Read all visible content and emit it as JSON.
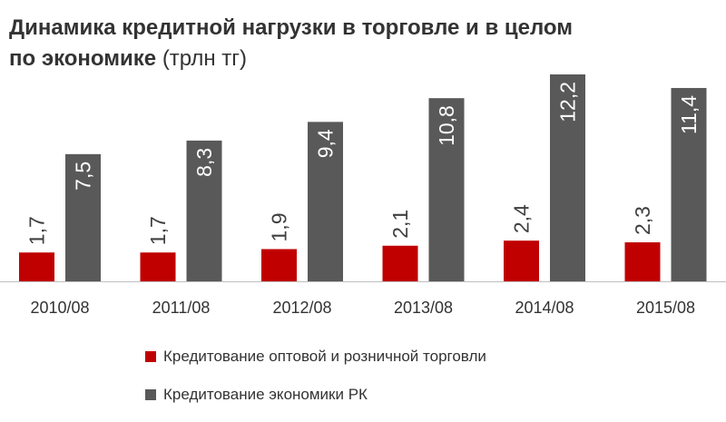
{
  "chart_data": {
    "type": "bar",
    "title": "Динамика  кредитной нагрузки в торговле и в целом по экономике",
    "subtitle": "(трлн тг)",
    "categories": [
      "2010/08",
      "2011/08",
      "2012/08",
      "2013/08",
      "2014/08",
      "2015/08"
    ],
    "series": [
      {
        "name": "Кредитование оптовой и розничной торговли",
        "color": "#c00000",
        "values": [
          1.7,
          1.7,
          1.9,
          2.1,
          2.4,
          2.3
        ],
        "labels": [
          "1,7",
          "1,7",
          "1,9",
          "2,1",
          "2,4",
          "2,3"
        ]
      },
      {
        "name": "Кредитование экономики РК",
        "color": "#595959",
        "values": [
          7.5,
          8.3,
          9.4,
          10.8,
          12.2,
          11.4
        ],
        "labels": [
          "7,5",
          "8,3",
          "9,4",
          "10,8",
          "12,2",
          "11,4"
        ]
      }
    ],
    "ylim": [
      0,
      12.2
    ],
    "grid": false,
    "legend_position": "bottom"
  }
}
